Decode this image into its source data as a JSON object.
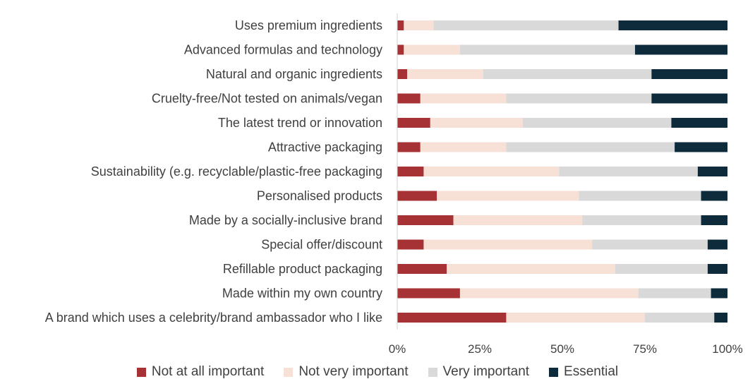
{
  "chart_data": {
    "type": "bar",
    "orientation": "horizontal",
    "stacked": true,
    "percent_stacked": true,
    "categories": [
      "Uses premium ingredients",
      "Advanced formulas and technology ",
      "Natural and organic ingredients",
      "Cruelty-free/Not tested on animals/vegan",
      "The latest trend or innovation",
      "Attractive packaging",
      "Sustainability (e.g. recyclable/plastic-free packaging",
      "Personalised products",
      "Made by a socially-inclusive brand ",
      "Special offer/discount",
      "Refillable product packaging",
      "Made within my own country",
      "A brand which uses a celebrity/brand ambassador who I like"
    ],
    "series": [
      {
        "name": "Not at all important",
        "color": "#A63236",
        "values": [
          2,
          2,
          3,
          7,
          10,
          7,
          8,
          12,
          17,
          8,
          15,
          19,
          33
        ]
      },
      {
        "name": "Not very important",
        "color": "#F7E1D7",
        "values": [
          9,
          17,
          23,
          26,
          28,
          26,
          41,
          43,
          39,
          51,
          51,
          54,
          42
        ]
      },
      {
        "name": "Very important",
        "color": "#D9D9D9",
        "values": [
          56,
          53,
          51,
          44,
          45,
          51,
          42,
          37,
          36,
          35,
          28,
          22,
          21
        ]
      },
      {
        "name": "Essential",
        "color": "#0E2B3C",
        "values": [
          33,
          28,
          23,
          23,
          17,
          16,
          9,
          8,
          8,
          6,
          6,
          5,
          4
        ]
      }
    ],
    "x_ticks": [
      "0%",
      "25%",
      "50%",
      "75%",
      "100%"
    ],
    "xlim": [
      0,
      100
    ],
    "title": "",
    "xlabel": "",
    "ylabel": "",
    "grid": false,
    "legend_position": "bottom"
  }
}
